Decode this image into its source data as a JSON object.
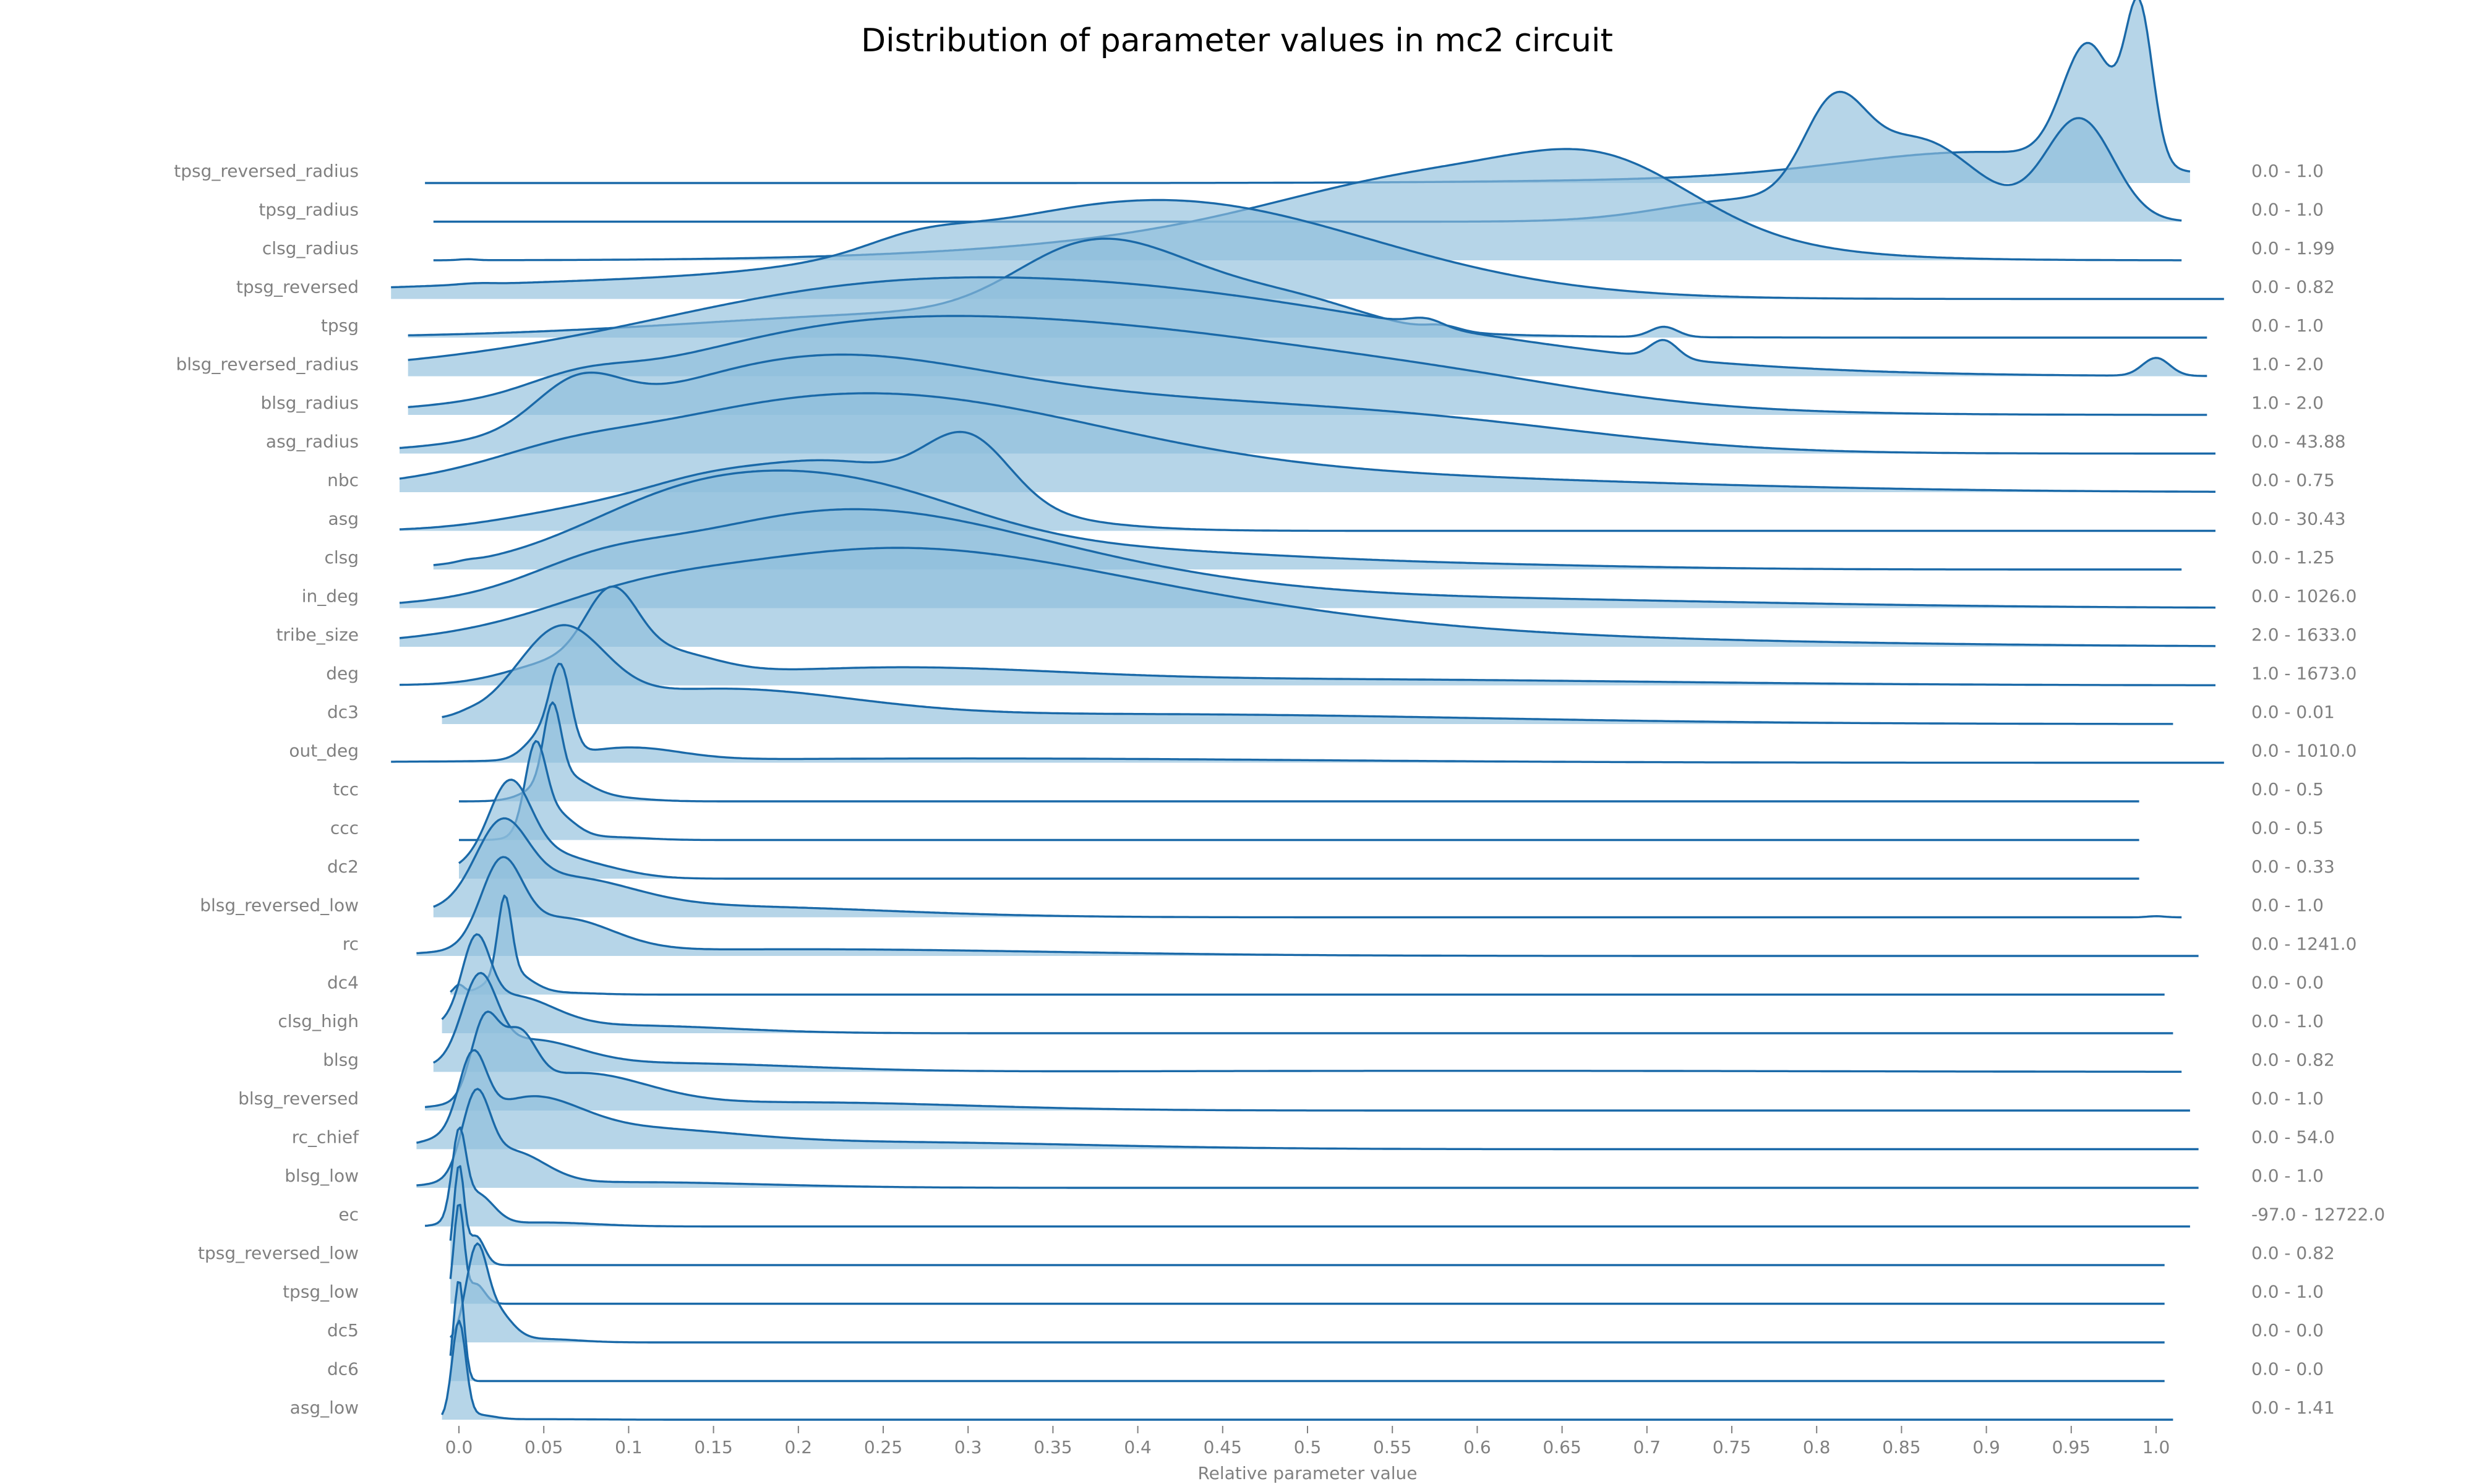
{
  "chart_data": {
    "type": "ridgeline",
    "title": "Distribution of parameter values in mc2 circuit",
    "xlabel": "Relative parameter value",
    "ylabel": "",
    "xlim": [
      -0.04,
      1.02
    ],
    "x_ticks": [
      "0.0",
      "0.05",
      "0.1",
      "0.15",
      "0.2",
      "0.25",
      "0.3",
      "0.35",
      "0.4",
      "0.45",
      "0.5",
      "0.55",
      "0.6",
      "0.65",
      "0.7",
      "0.75",
      "0.8",
      "0.85",
      "0.9",
      "0.95",
      "1.0"
    ],
    "grid": false,
    "legend": "none",
    "colors": {
      "line": "#1a69a8",
      "fill": "#8fbfdc",
      "label": "#808080",
      "title": "#000000"
    },
    "series": [
      {
        "name": "tpsg_reversed_radius",
        "range": "0.0 - 1.0",
        "x_extent": [
          -0.02,
          1.02
        ],
        "peak": 3.0,
        "peaks": [
          [
            0.96,
            0.015,
            1.0
          ],
          [
            0.99,
            0.008,
            1.3
          ],
          [
            0.9,
            0.08,
            0.22
          ],
          [
            0.85,
            0.15,
            0.05
          ]
        ]
      },
      {
        "name": "tpsg_radius",
        "range": "0.0 - 1.0",
        "x_extent": [
          -0.015,
          1.015
        ],
        "peak": 2.1,
        "peaks": [
          [
            0.81,
            0.018,
            0.78
          ],
          [
            0.86,
            0.035,
            0.72
          ],
          [
            0.955,
            0.02,
            0.92
          ],
          [
            0.76,
            0.05,
            0.2
          ]
        ]
      },
      {
        "name": "clsg_radius",
        "range": "0.0 - 1.99",
        "x_extent": [
          -0.015,
          1.015
        ],
        "peak": 1.8,
        "peaks": [
          [
            0.005,
            0.005,
            0.008
          ],
          [
            0.6,
            0.1,
            0.55
          ],
          [
            0.68,
            0.05,
            0.35
          ],
          [
            0.5,
            0.15,
            0.2
          ]
        ]
      },
      {
        "name": "tpsg_reversed",
        "range": "0.0 - 0.82",
        "x_extent": [
          -0.04,
          1.04
        ],
        "peak": 1.6,
        "peaks": [
          [
            0.42,
            0.12,
            0.75
          ],
          [
            0.27,
            0.03,
            0.1
          ],
          [
            0.15,
            0.2,
            0.15
          ],
          [
            0.01,
            0.01,
            0.01
          ]
        ]
      },
      {
        "name": "tpsg",
        "range": "0.0 - 1.0",
        "x_extent": [
          -0.03,
          1.03
        ],
        "peak": 1.6,
        "peaks": [
          [
            0.41,
            0.05,
            0.6
          ],
          [
            0.36,
            0.04,
            0.45
          ],
          [
            0.5,
            0.04,
            0.25
          ],
          [
            0.3,
            0.15,
            0.3
          ],
          [
            0.58,
            0.01,
            0.06
          ],
          [
            0.71,
            0.008,
            0.12
          ]
        ]
      },
      {
        "name": "blsg_reversed_radius",
        "range": "1.0 - 2.0",
        "x_extent": [
          -0.03,
          1.03
        ],
        "peak": 1.6,
        "peaks": [
          [
            0.35,
            0.2,
            0.62
          ],
          [
            0.57,
            0.01,
            0.05
          ],
          [
            0.71,
            0.008,
            0.12
          ],
          [
            1.0,
            0.008,
            0.12
          ],
          [
            0.2,
            0.1,
            0.1
          ]
        ]
      },
      {
        "name": "blsg_radius",
        "range": "1.0 - 2.0",
        "x_extent": [
          -0.03,
          1.03
        ],
        "peak": 1.6,
        "peaks": [
          [
            0.2,
            0.1,
            0.3
          ],
          [
            0.37,
            0.17,
            0.75
          ],
          [
            0.07,
            0.03,
            0.12
          ],
          [
            0.6,
            0.08,
            0.08
          ]
        ]
      },
      {
        "name": "asg_radius",
        "range": "0.0 - 43.88",
        "x_extent": [
          -0.035,
          1.035
        ],
        "peak": 1.6,
        "peaks": [
          [
            0.07,
            0.025,
            0.3
          ],
          [
            0.2,
            0.1,
            0.55
          ],
          [
            0.4,
            0.15,
            0.35
          ],
          [
            0.6,
            0.1,
            0.1
          ]
        ]
      },
      {
        "name": "nbc",
        "range": "0.0 - 0.75",
        "x_extent": [
          -0.035,
          1.035
        ],
        "peak": 1.6,
        "peaks": [
          [
            0.18,
            0.12,
            0.55
          ],
          [
            0.3,
            0.12,
            0.45
          ],
          [
            0.06,
            0.04,
            0.1
          ],
          [
            0.5,
            0.2,
            0.15
          ]
        ]
      },
      {
        "name": "asg",
        "range": "0.0 - 30.43",
        "x_extent": [
          -0.035,
          1.035
        ],
        "peak": 1.6,
        "peaks": [
          [
            0.15,
            0.04,
            0.3
          ],
          [
            0.22,
            0.04,
            0.28
          ],
          [
            0.3,
            0.025,
            0.55
          ],
          [
            0.26,
            0.07,
            0.3
          ],
          [
            0.08,
            0.05,
            0.18
          ]
        ]
      },
      {
        "name": "clsg",
        "range": "0.0 - 1.25",
        "x_extent": [
          -0.015,
          1.015
        ],
        "peak": 1.6,
        "peaks": [
          [
            0.005,
            0.006,
            0.01
          ],
          [
            0.22,
            0.08,
            0.6
          ],
          [
            0.12,
            0.06,
            0.3
          ],
          [
            0.4,
            0.1,
            0.12
          ],
          [
            0.6,
            0.1,
            0.03
          ]
        ]
      },
      {
        "name": "in_deg",
        "range": "0.0 - 1026.0",
        "x_extent": [
          -0.035,
          1.035
        ],
        "peak": 1.6,
        "peaks": [
          [
            0.2,
            0.1,
            0.5
          ],
          [
            0.3,
            0.12,
            0.35
          ],
          [
            0.08,
            0.04,
            0.15
          ],
          [
            0.55,
            0.2,
            0.08
          ]
        ]
      },
      {
        "name": "tribe_size",
        "range": "2.0 - 1633.0",
        "x_extent": [
          -0.035,
          1.035
        ],
        "peak": 1.6,
        "peaks": [
          [
            0.22,
            0.12,
            0.42
          ],
          [
            0.35,
            0.15,
            0.3
          ],
          [
            0.1,
            0.05,
            0.1
          ],
          [
            0.6,
            0.2,
            0.05
          ]
        ]
      },
      {
        "name": "deg",
        "range": "1.0 - 1673.0",
        "x_extent": [
          -0.035,
          1.035
        ],
        "peak": 1.6,
        "peaks": [
          [
            0.09,
            0.015,
            0.65
          ],
          [
            0.12,
            0.03,
            0.25
          ],
          [
            0.06,
            0.03,
            0.2
          ],
          [
            0.25,
            0.1,
            0.15
          ],
          [
            0.5,
            0.2,
            0.06
          ]
        ]
      },
      {
        "name": "dc3",
        "range": "0.0 - 0.01",
        "x_extent": [
          -0.01,
          1.01
        ],
        "peak": 1.6,
        "peaks": [
          [
            0.005,
            0.006,
            0.01
          ],
          [
            0.06,
            0.025,
            0.65
          ],
          [
            0.15,
            0.08,
            0.25
          ],
          [
            0.4,
            0.2,
            0.08
          ]
        ]
      },
      {
        "name": "out_deg",
        "range": "0.0 - 1010.0",
        "x_extent": [
          -0.04,
          1.04
        ],
        "peak": 1.6,
        "peaks": [
          [
            0.06,
            0.006,
            0.9
          ],
          [
            0.05,
            0.01,
            0.3
          ],
          [
            0.1,
            0.03,
            0.15
          ],
          [
            0.3,
            0.2,
            0.05
          ]
        ]
      },
      {
        "name": "tcc",
        "range": "0.0 - 0.5",
        "x_extent": [
          0.0,
          0.99
        ],
        "peak": 1.6,
        "peaks": [
          [
            0.055,
            0.005,
            0.85
          ],
          [
            0.06,
            0.015,
            0.3
          ],
          [
            0.09,
            0.02,
            0.04
          ]
        ]
      },
      {
        "name": "ccc",
        "range": "0.0 - 0.5",
        "x_extent": [
          0.0,
          0.99
        ],
        "peak": 1.6,
        "peaks": [
          [
            0.045,
            0.006,
            0.85
          ],
          [
            0.055,
            0.012,
            0.3
          ],
          [
            0.09,
            0.02,
            0.03
          ]
        ]
      },
      {
        "name": "dc2",
        "range": "0.0 - 0.33",
        "x_extent": [
          0.0,
          0.99
        ],
        "peak": 1.6,
        "peaks": [
          [
            0.03,
            0.012,
            0.7
          ],
          [
            0.04,
            0.03,
            0.3
          ],
          [
            0.09,
            0.02,
            0.04
          ]
        ]
      },
      {
        "name": "blsg_reversed_low",
        "range": "0.0 - 1.0",
        "x_extent": [
          -0.015,
          1.015
        ],
        "peak": 1.6,
        "peaks": [
          [
            0.025,
            0.015,
            0.65
          ],
          [
            0.06,
            0.04,
            0.3
          ],
          [
            0.15,
            0.1,
            0.1
          ],
          [
            1.0,
            0.005,
            0.01
          ]
        ]
      },
      {
        "name": "rc",
        "range": "0.0 - 1241.0",
        "x_extent": [
          -0.025,
          1.025
        ],
        "peak": 1.6,
        "peaks": [
          [
            0.025,
            0.012,
            0.7
          ],
          [
            0.06,
            0.03,
            0.3
          ],
          [
            0.2,
            0.15,
            0.06
          ]
        ]
      },
      {
        "name": "dc4",
        "range": "0.0 - 0.0",
        "x_extent": [
          -0.005,
          1.005
        ],
        "peak": 1.6,
        "peaks": [
          [
            0.027,
            0.004,
            0.85
          ],
          [
            0.03,
            0.012,
            0.25
          ],
          [
            0.0,
            0.003,
            0.1
          ],
          [
            0.06,
            0.02,
            0.02
          ]
        ]
      },
      {
        "name": "clsg_high",
        "range": "0.0 - 1.0",
        "x_extent": [
          -0.01,
          1.01
        ],
        "peak": 1.6,
        "peaks": [
          [
            0.01,
            0.008,
            0.75
          ],
          [
            0.03,
            0.025,
            0.35
          ],
          [
            0.1,
            0.06,
            0.08
          ]
        ]
      },
      {
        "name": "blsg",
        "range": "0.0 - 0.82",
        "x_extent": [
          -0.015,
          1.015
        ],
        "peak": 1.6,
        "peaks": [
          [
            0.012,
            0.01,
            0.72
          ],
          [
            0.04,
            0.03,
            0.25
          ],
          [
            0.12,
            0.08,
            0.08
          ],
          [
            0.6,
            0.2,
            0.01
          ]
        ]
      },
      {
        "name": "blsg_reversed",
        "range": "0.0 - 1.0",
        "x_extent": [
          -0.02,
          1.02
        ],
        "peak": 1.6,
        "peaks": [
          [
            0.015,
            0.008,
            0.55
          ],
          [
            0.035,
            0.01,
            0.4
          ],
          [
            0.07,
            0.04,
            0.25
          ],
          [
            0.2,
            0.1,
            0.06
          ]
        ]
      },
      {
        "name": "rc_chief",
        "range": "0.0 - 54.0",
        "x_extent": [
          -0.025,
          1.025
        ],
        "peak": 1.6,
        "peaks": [
          [
            0.008,
            0.008,
            0.6
          ],
          [
            0.04,
            0.03,
            0.35
          ],
          [
            0.1,
            0.06,
            0.15
          ],
          [
            0.25,
            0.12,
            0.06
          ]
        ]
      },
      {
        "name": "blsg_low",
        "range": "0.0 - 1.0",
        "x_extent": [
          -0.025,
          1.025
        ],
        "peak": 1.6,
        "peaks": [
          [
            0.01,
            0.008,
            0.8
          ],
          [
            0.03,
            0.02,
            0.35
          ],
          [
            0.1,
            0.08,
            0.06
          ]
        ]
      },
      {
        "name": "ec",
        "range": "-97.0 - 12722.0",
        "x_extent": [
          -0.02,
          1.02
        ],
        "peak": 1.6,
        "peaks": [
          [
            0.0,
            0.004,
            1.0
          ],
          [
            0.01,
            0.01,
            0.4
          ],
          [
            0.05,
            0.03,
            0.05
          ]
        ]
      },
      {
        "name": "tpsg_reversed_low",
        "range": "0.0 - 0.82",
        "x_extent": [
          -0.005,
          1.005
        ],
        "peak": 1.6,
        "peaks": [
          [
            0.0,
            0.003,
            1.0
          ],
          [
            0.01,
            0.005,
            0.3
          ]
        ]
      },
      {
        "name": "tpsg_low",
        "range": "0.0 - 1.0",
        "x_extent": [
          -0.005,
          1.005
        ],
        "peak": 1.6,
        "peaks": [
          [
            0.0,
            0.003,
            1.0
          ],
          [
            0.01,
            0.005,
            0.2
          ]
        ]
      },
      {
        "name": "dc5",
        "range": "0.0 - 0.0",
        "x_extent": [
          -0.005,
          1.005
        ],
        "peak": 1.6,
        "peaks": [
          [
            0.01,
            0.006,
            0.7
          ],
          [
            0.02,
            0.01,
            0.3
          ],
          [
            0.05,
            0.02,
            0.03
          ]
        ]
      },
      {
        "name": "dc6",
        "range": "0.0 - 0.0",
        "x_extent": [
          -0.005,
          1.005
        ],
        "peak": 1.6,
        "peaks": [
          [
            0.0,
            0.003,
            1.0
          ]
        ]
      },
      {
        "name": "asg_low",
        "range": "0.0 - 1.41",
        "x_extent": [
          -0.01,
          1.01
        ],
        "peak": 1.6,
        "peaks": [
          [
            0.0,
            0.004,
            1.0
          ],
          [
            0.01,
            0.01,
            0.05
          ],
          [
            0.05,
            0.03,
            0.005
          ]
        ]
      }
    ]
  }
}
